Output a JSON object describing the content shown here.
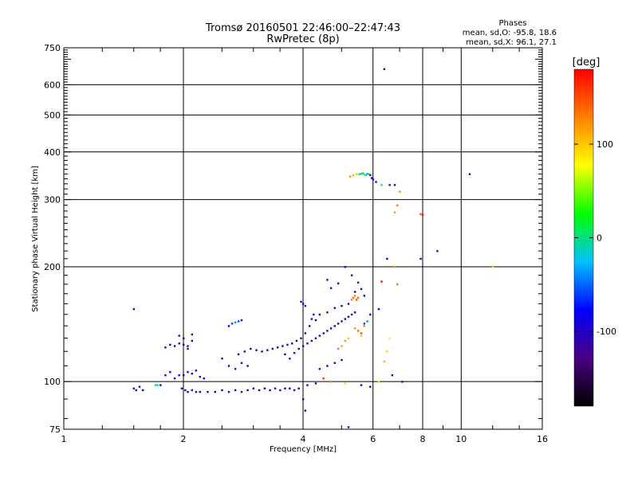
{
  "chart_data": {
    "type": "scatter",
    "title": "Tromsø 20160501 22:46:00–22:47:43",
    "subtitle": "RwPretec (8p)",
    "xlabel": "Frequency [MHz]",
    "ylabel": "Stationary phase Virtual Height [km]",
    "x_scale": "log2",
    "y_scale": "log",
    "xlim": [
      1,
      16
    ],
    "ylim": [
      75,
      750
    ],
    "x_ticks": [
      1,
      2,
      4,
      6,
      8,
      10,
      16
    ],
    "y_ticks": [
      75,
      100,
      200,
      300,
      400,
      500,
      600,
      750
    ],
    "x_grid": [
      2,
      4,
      6,
      8,
      10
    ],
    "y_grid": [
      100,
      200,
      300,
      400,
      500,
      600
    ],
    "grid": true,
    "phases_title": "Phases",
    "phases_lines": [
      "mean, sd,O: -95.8, 18.6",
      "mean, sd,X:  96.1, 27.1"
    ],
    "colorbar": {
      "label": "[deg]",
      "ticks": [
        100,
        0,
        -100
      ],
      "range": [
        -180,
        180
      ],
      "colors": [
        "#000000",
        "#4b0082",
        "#0000ff",
        "#00c0ff",
        "#00ff00",
        "#ffff00",
        "#ff8000",
        "#ff0000"
      ]
    },
    "series": [
      {
        "values": [
          [
            1.5,
            96,
            -110
          ],
          [
            1.52,
            95,
            -100
          ],
          [
            1.55,
            97,
            -90
          ],
          [
            1.58,
            95,
            -110
          ],
          [
            1.7,
            98,
            20
          ],
          [
            1.72,
            98,
            -10
          ],
          [
            1.75,
            98,
            -100
          ],
          [
            1.8,
            104,
            -100
          ],
          [
            1.85,
            106,
            -100
          ],
          [
            1.9,
            102,
            -110
          ],
          [
            1.95,
            104,
            -100
          ],
          [
            2.0,
            104,
            -90
          ],
          [
            2.05,
            106,
            -100
          ],
          [
            2.1,
            105,
            -110
          ],
          [
            2.15,
            107,
            -90
          ],
          [
            2.2,
            103,
            -100
          ],
          [
            2.25,
            102,
            -110
          ],
          [
            1.98,
            96,
            -100
          ],
          [
            2.02,
            95,
            -110
          ],
          [
            2.05,
            94,
            -100
          ],
          [
            2.1,
            95,
            -105
          ],
          [
            2.15,
            94,
            -100
          ],
          [
            2.2,
            94,
            -110
          ],
          [
            2.3,
            94,
            -100
          ],
          [
            2.4,
            94,
            -110
          ],
          [
            2.5,
            95,
            -100
          ],
          [
            2.6,
            94,
            -105
          ],
          [
            2.7,
            95,
            -100
          ],
          [
            2.8,
            94,
            -110
          ],
          [
            2.9,
            95,
            -100
          ],
          [
            3.0,
            96,
            -105
          ],
          [
            3.1,
            95,
            -100
          ],
          [
            3.2,
            96,
            -110
          ],
          [
            3.3,
            95,
            -100
          ],
          [
            3.4,
            96,
            -95
          ],
          [
            3.5,
            95,
            -110
          ],
          [
            3.6,
            96,
            -100
          ],
          [
            3.7,
            96,
            -100
          ],
          [
            3.8,
            95,
            -110
          ],
          [
            3.9,
            96,
            -100
          ],
          [
            1.8,
            123,
            -110
          ],
          [
            1.85,
            125,
            -100
          ],
          [
            1.9,
            124,
            -110
          ],
          [
            1.95,
            126,
            -100
          ],
          [
            2.0,
            125,
            -95
          ],
          [
            2.05,
            124,
            -110
          ],
          [
            2.1,
            128,
            -100
          ],
          [
            2.05,
            122,
            -110
          ],
          [
            2.0,
            130,
            -100
          ],
          [
            1.95,
            132,
            -100
          ],
          [
            2.1,
            133,
            -110
          ],
          [
            2.6,
            140,
            -80
          ],
          [
            2.65,
            142,
            -60
          ],
          [
            2.7,
            143,
            -40
          ],
          [
            2.75,
            144,
            -60
          ],
          [
            2.8,
            145,
            -100
          ],
          [
            2.5,
            115,
            -100
          ],
          [
            2.6,
            110,
            -100
          ],
          [
            2.7,
            108,
            -110
          ],
          [
            2.8,
            112,
            -100
          ],
          [
            2.9,
            110,
            -90
          ],
          [
            2.75,
            118,
            -100
          ],
          [
            2.85,
            120,
            -110
          ],
          [
            2.95,
            122,
            -100
          ],
          [
            3.05,
            121,
            -110
          ],
          [
            3.15,
            120,
            -100
          ],
          [
            3.25,
            121,
            -100
          ],
          [
            3.35,
            122,
            -110
          ],
          [
            3.45,
            123,
            -100
          ],
          [
            3.55,
            124,
            -110
          ],
          [
            3.65,
            125,
            -100
          ],
          [
            3.75,
            126,
            -100
          ],
          [
            3.85,
            128,
            -110
          ],
          [
            3.95,
            130,
            -100
          ],
          [
            4.05,
            134,
            -100
          ],
          [
            4.15,
            140,
            -110
          ],
          [
            4.2,
            146,
            -100
          ],
          [
            4.25,
            150,
            -100
          ],
          [
            4.3,
            145,
            -90
          ],
          [
            3.6,
            118,
            -100
          ],
          [
            3.7,
            115,
            -110
          ],
          [
            3.8,
            119,
            -100
          ],
          [
            3.9,
            122,
            -110
          ],
          [
            4.0,
            124,
            -100
          ],
          [
            4.1,
            126,
            -100
          ],
          [
            4.2,
            128,
            -110
          ],
          [
            4.3,
            130,
            -100
          ],
          [
            4.4,
            132,
            -100
          ],
          [
            4.5,
            134,
            -110
          ],
          [
            4.6,
            136,
            -100
          ],
          [
            4.7,
            138,
            -100
          ],
          [
            4.8,
            140,
            -110
          ],
          [
            4.9,
            142,
            -100
          ],
          [
            5.0,
            144,
            -100
          ],
          [
            5.1,
            146,
            -90
          ],
          [
            5.2,
            148,
            -100
          ],
          [
            5.3,
            150,
            -110
          ],
          [
            5.4,
            152,
            -100
          ],
          [
            4.0,
            160,
            -100
          ],
          [
            4.05,
            158,
            -110
          ],
          [
            3.95,
            162,
            -100
          ],
          [
            4.4,
            150,
            -100
          ],
          [
            4.6,
            152,
            -110
          ],
          [
            4.8,
            156,
            -100
          ],
          [
            5.0,
            158,
            -100
          ],
          [
            5.2,
            160,
            -110
          ],
          [
            5.3,
            164,
            130
          ],
          [
            5.35,
            166,
            140
          ],
          [
            5.4,
            168,
            130
          ],
          [
            5.45,
            164,
            150
          ],
          [
            5.5,
            166,
            140
          ],
          [
            5.4,
            138,
            120
          ],
          [
            5.5,
            136,
            140
          ],
          [
            5.6,
            134,
            150
          ],
          [
            5.7,
            140,
            130
          ],
          [
            5.6,
            132,
            100
          ],
          [
            5.7,
            142,
            -60
          ],
          [
            5.8,
            144,
            -40
          ],
          [
            5.9,
            150,
            -100
          ],
          [
            6.2,
            155,
            -100
          ],
          [
            4.6,
            185,
            -100
          ],
          [
            4.7,
            176,
            -100
          ],
          [
            4.9,
            181,
            -110
          ],
          [
            5.1,
            200,
            -100
          ],
          [
            5.3,
            190,
            -100
          ],
          [
            5.4,
            172,
            -100
          ],
          [
            5.5,
            182,
            -90
          ],
          [
            5.6,
            175,
            -100
          ],
          [
            5.7,
            168,
            -100
          ],
          [
            5.25,
            345,
            120
          ],
          [
            5.35,
            348,
            110
          ],
          [
            5.45,
            350,
            100
          ],
          [
            5.5,
            349,
            80
          ],
          [
            5.55,
            350,
            -20
          ],
          [
            5.6,
            351,
            0
          ],
          [
            5.65,
            352,
            -10
          ],
          [
            5.7,
            350,
            40
          ],
          [
            5.75,
            348,
            -20
          ],
          [
            5.8,
            351,
            -30
          ],
          [
            5.85,
            350,
            10
          ],
          [
            5.9,
            348,
            -100
          ],
          [
            5.95,
            342,
            -90
          ],
          [
            6.0,
            339,
            -100
          ],
          [
            6.1,
            334,
            -100
          ],
          [
            6.3,
            328,
            20
          ],
          [
            6.6,
            328,
            -100
          ],
          [
            6.8,
            328,
            -100
          ],
          [
            7.0,
            315,
            120
          ],
          [
            6.9,
            290,
            130
          ],
          [
            6.8,
            278,
            120
          ],
          [
            7.9,
            275,
            150
          ],
          [
            8.0,
            274,
            170
          ],
          [
            6.4,
            660,
            -110
          ],
          [
            10.5,
            350,
            -100
          ],
          [
            8.7,
            220,
            -100
          ],
          [
            7.9,
            210,
            -100
          ],
          [
            12.0,
            200,
            100
          ],
          [
            6.5,
            210,
            -100
          ],
          [
            6.8,
            200,
            120
          ],
          [
            6.9,
            180,
            130
          ],
          [
            6.3,
            183,
            180
          ],
          [
            6.6,
            130,
            80
          ],
          [
            6.5,
            120,
            100
          ],
          [
            6.4,
            113,
            110
          ],
          [
            6.7,
            104,
            -100
          ],
          [
            7.1,
            100,
            -110
          ],
          [
            6.2,
            100,
            60
          ],
          [
            5.9,
            97,
            -100
          ],
          [
            5.6,
            98,
            -100
          ],
          [
            5.1,
            99,
            60
          ],
          [
            4.7,
            100,
            130
          ],
          [
            4.5,
            102,
            160
          ],
          [
            4.3,
            99,
            -100
          ],
          [
            4.1,
            98,
            -100
          ],
          [
            4.0,
            90,
            -100
          ],
          [
            4.05,
            84,
            -90
          ],
          [
            5.2,
            76,
            -100
          ],
          [
            4.4,
            108,
            -110
          ],
          [
            4.6,
            110,
            -100
          ],
          [
            4.8,
            112,
            -110
          ],
          [
            5.0,
            114,
            -100
          ],
          [
            5.0,
            124,
            110
          ],
          [
            5.1,
            128,
            120
          ],
          [
            5.2,
            130,
            100
          ],
          [
            4.9,
            122,
            130
          ],
          [
            1.5,
            155,
            -110
          ]
        ]
      }
    ]
  }
}
